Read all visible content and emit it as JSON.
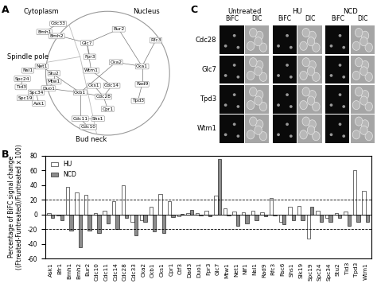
{
  "panel_labels": [
    "A",
    "B",
    "C"
  ],
  "panel_a": {
    "regions": [
      "Cytoplasm",
      "Nucleus",
      "Spindle pole",
      "Bud neck"
    ],
    "nodes": [
      "Cdc33",
      "Bmh1",
      "Bmh2",
      "Glc7",
      "Bur2",
      "Rfc3",
      "Fpr3",
      "Wtm1",
      "Cka2",
      "Cka1",
      "Rad9",
      "Cks1",
      "Cdc14",
      "Cdc28",
      "Tpd3",
      "Cpr1",
      "Ckb1",
      "Cdc11",
      "Shs1",
      "Cdc10",
      "Net1",
      "Nsl1",
      "Stu2",
      "Mtw1",
      "Spc24",
      "Duo1",
      "Tid3",
      "Spc34",
      "Spc19",
      "Ask1"
    ],
    "edges": [
      [
        "Glc7",
        "Bur2"
      ],
      [
        "Glc7",
        "Bmh1"
      ],
      [
        "Glc7",
        "Wtm1"
      ],
      [
        "Glc7",
        "Fpr3"
      ],
      [
        "Bur2",
        "Cka1"
      ],
      [
        "Rfc3",
        "Cka1"
      ],
      [
        "Cka1",
        "Cka2"
      ],
      [
        "Cka1",
        "Rad9"
      ],
      [
        "Cka2",
        "Ckb1"
      ],
      [
        "Ckb1",
        "Duo1"
      ],
      [
        "Ckb1",
        "Net1"
      ],
      [
        "Cdc28",
        "Cks1"
      ],
      [
        "Cdc28",
        "Cdc14"
      ],
      [
        "Tpd3",
        "Rad9"
      ],
      [
        "Cpr1",
        "Cdc28"
      ],
      [
        "Cdc11",
        "Shs1"
      ],
      [
        "Cdc10",
        "Cdc11"
      ],
      [
        "Ckb1",
        "Cdc11"
      ],
      [
        "Mtw1",
        "Duo1"
      ],
      [
        "Net1",
        "Nsl1"
      ],
      [
        "Spc24",
        "Tid3"
      ],
      [
        "Spc34",
        "Ask1"
      ],
      [
        "Spc19",
        "Spc34"
      ],
      [
        "Stu2",
        "Mtw1"
      ],
      [
        "Bmh2",
        "Bmh1"
      ],
      [
        "Cdc33",
        "Bmh1"
      ],
      [
        "Ckb1",
        "Cdc28"
      ],
      [
        "Wtm1",
        "Cdc14"
      ]
    ]
  },
  "chart_data": {
    "type": "bar",
    "categories": [
      "Ask1",
      "Bfr1",
      "Bmh1",
      "Bmh2",
      "Bur2",
      "Cdc10",
      "Cdc11",
      "Cdc14",
      "Cdc28",
      "Cdc33",
      "Cka2",
      "Ckb1",
      "Cks1",
      "Cpr1",
      "Ctf3",
      "Dad3",
      "Duo1",
      "Fpr3",
      "Glc7",
      "Mtw1",
      "Net1",
      "Nif1",
      "Nsl1",
      "Rad9",
      "Rfc3",
      "Rsc6",
      "Shs1",
      "Slk19",
      "Spc19",
      "Spc24",
      "Spc34",
      "Stu2",
      "Tid3",
      "Tpd3",
      "Wtm1"
    ],
    "series": [
      {
        "name": "HU",
        "color": "#ffffff",
        "values": [
          2,
          -2,
          37,
          30,
          27,
          2,
          5,
          18,
          40,
          -10,
          -8,
          10,
          28,
          18,
          -3,
          2,
          2,
          5,
          26,
          8,
          4,
          3,
          5,
          3,
          22,
          -10,
          10,
          12,
          -33,
          5,
          -5,
          2,
          4,
          60,
          32
        ]
      },
      {
        "name": "NCD",
        "color": "#8c8c8c",
        "values": [
          -5,
          -8,
          -22,
          -45,
          -22,
          -25,
          -12,
          -20,
          -5,
          -28,
          -10,
          -23,
          -25,
          -4,
          1,
          6,
          -2,
          -3,
          75,
          -2,
          -15,
          -12,
          -8,
          -3,
          -2,
          -13,
          -8,
          -8,
          10,
          -10,
          -10,
          -5,
          -15,
          -10,
          -10
        ]
      }
    ],
    "ylabel": "Percentage of BiFC signal change\n((Ftreated-Funtreated)/Funtreated x 100)",
    "ylim": [
      -60,
      80
    ],
    "yticks": [
      -60,
      -40,
      -20,
      0,
      20,
      40,
      60,
      80
    ],
    "thresholds": [
      20,
      -20
    ],
    "legend": "upper left"
  },
  "panel_c": {
    "groups": [
      "Untreated",
      "HU",
      "NCD"
    ],
    "channels": [
      "BiFC",
      "DIC"
    ],
    "rows": [
      "Cdc28",
      "Glc7",
      "Tpd3",
      "Wtm1"
    ]
  }
}
